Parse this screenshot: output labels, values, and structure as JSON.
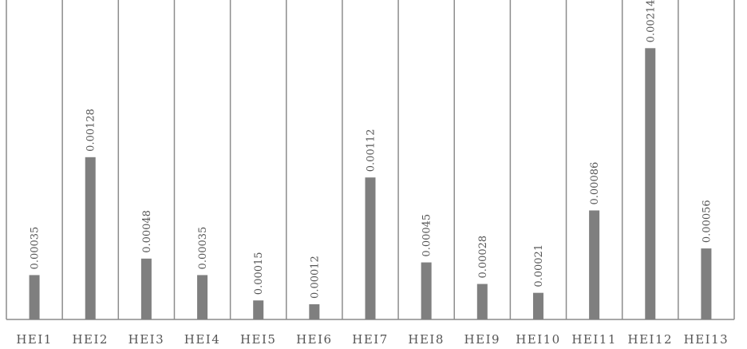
{
  "chart_data": {
    "type": "bar",
    "categories": [
      "HEI1",
      "HEI2",
      "HEI3",
      "HEI4",
      "HEI5",
      "HEI6",
      "HEI7",
      "HEI8",
      "HEI9",
      "HEI10",
      "HEI11",
      "HEI12",
      "HEI13"
    ],
    "values": [
      0.00035,
      0.00128,
      0.00048,
      0.00035,
      0.00015,
      0.00012,
      0.00112,
      0.00045,
      0.00028,
      0.00021,
      0.00086,
      0.00214,
      0.00056
    ],
    "data_labels": [
      "0.00035",
      "0.00128",
      "0.00048",
      "0.00035",
      "0.00015",
      "0.00012",
      "0.00112",
      "0.00045",
      "0.00028",
      "0.00021",
      "0.00086",
      "0.00214",
      "0.00056"
    ],
    "title": "",
    "xlabel": "",
    "ylabel": "",
    "ylim": [
      0,
      0.00252
    ],
    "grid": "vertical category separators",
    "legend": "none",
    "bar_color": "#7f7f7f",
    "grid_color": "#8c8c8c",
    "text_color": "#555555"
  }
}
